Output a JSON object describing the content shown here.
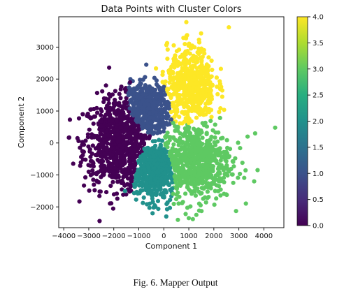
{
  "caption": "Fig. 6.  Mapper Output",
  "chart_data": {
    "type": "scatter",
    "title": "Data Points with Cluster Colors",
    "xlabel": "Component 1",
    "ylabel": "Component 2",
    "xlim": [
      -4200,
      4800
    ],
    "ylim": [
      -2650,
      3950
    ],
    "xticks": [
      -4000,
      -3000,
      -2000,
      -1000,
      0,
      1000,
      2000,
      3000,
      4000
    ],
    "xtick_labels": [
      "−4000",
      "−3000",
      "−2000",
      "−1000",
      "0",
      "1000",
      "2000",
      "3000",
      "4000"
    ],
    "yticks": [
      -2000,
      -1000,
      0,
      1000,
      2000,
      3000
    ],
    "ytick_labels": [
      "−2000",
      "−1000",
      "0",
      "1000",
      "2000",
      "3000"
    ],
    "grid": false,
    "colorbar": {
      "range": [
        0.0,
        4.0
      ],
      "ticks": [
        0.0,
        0.5,
        1.0,
        1.5,
        2.0,
        2.5,
        3.0,
        3.5,
        4.0
      ],
      "tick_labels": [
        "0.0",
        "0.5",
        "1.0",
        "1.5",
        "2.0",
        "2.5",
        "3.0",
        "3.5",
        "4.0"
      ],
      "colormap": "viridis"
    },
    "clusters": [
      {
        "value": 0,
        "color": "#440154",
        "center": [
          -1900,
          0
        ],
        "spread": [
          650,
          720
        ],
        "n": 700
      },
      {
        "value": 1,
        "color": "#3b528b",
        "center": [
          -650,
          1100
        ],
        "spread": [
          430,
          400
        ],
        "n": 480
      },
      {
        "value": 2,
        "color": "#21918c",
        "center": [
          -400,
          -900
        ],
        "spread": [
          480,
          470
        ],
        "n": 500
      },
      {
        "value": 3,
        "color": "#5ec962",
        "center": [
          1300,
          -600
        ],
        "spread": [
          700,
          600
        ],
        "n": 650
      },
      {
        "value": 4,
        "color": "#fde725",
        "center": [
          1100,
          1800
        ],
        "spread": [
          480,
          600
        ],
        "n": 560
      }
    ],
    "outliers": [
      {
        "x": 2600,
        "y": 3620,
        "c": 4
      },
      {
        "x": 4450,
        "y": 480,
        "c": 3
      },
      {
        "x": 3750,
        "y": -850,
        "c": 3
      },
      {
        "x": 3350,
        "y": 200,
        "c": 3
      },
      {
        "x": 3650,
        "y": 300,
        "c": 3
      },
      {
        "x": -1350,
        "y": 1900,
        "c": 0
      },
      {
        "x": -3000,
        "y": -900,
        "c": 0
      },
      {
        "x": -3450,
        "y": 150,
        "c": 0
      },
      {
        "x": -450,
        "y": -2200,
        "c": 2
      },
      {
        "x": 100,
        "y": -2300,
        "c": 2
      },
      {
        "x": 1000,
        "y": -2350,
        "c": 3
      },
      {
        "x": 1300,
        "y": -2250,
        "c": 3
      },
      {
        "x": -1550,
        "y": -1500,
        "c": 2
      },
      {
        "x": -700,
        "y": 2450,
        "c": 1
      }
    ]
  }
}
